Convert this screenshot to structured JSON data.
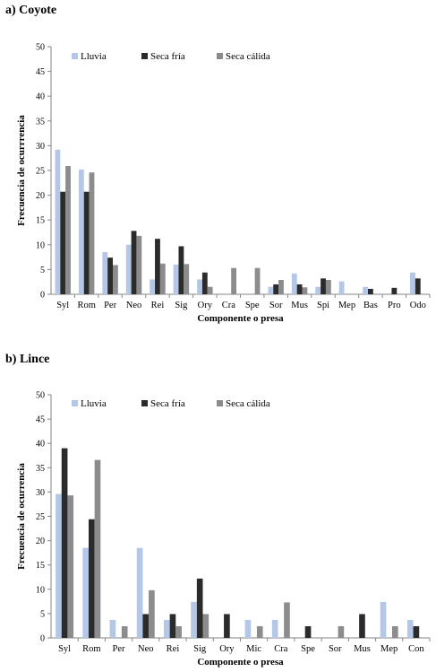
{
  "panels": [
    {
      "title": "a) Coyote"
    },
    {
      "title": "b) Lince"
    }
  ],
  "colors": {
    "lluvia": "#b4c7e7",
    "seca_fria": "#2b2b2b",
    "seca_calida": "#8c8c8c",
    "axis": "#868686"
  },
  "chart_data": [
    {
      "type": "bar",
      "xlabel": "Componente o presa",
      "ylabel": "Frecuencia de ocurrrencia",
      "ylim": [
        0,
        50
      ],
      "yticks": [
        0,
        5,
        10,
        15,
        20,
        25,
        30,
        35,
        40,
        45,
        50
      ],
      "grid": false,
      "legend_position": "top-left",
      "categories": [
        "Syl",
        "Rom",
        "Per",
        "Neo",
        "Rei",
        "Sig",
        "Ory",
        "Cra",
        "Spe",
        "Sor",
        "Mus",
        "Spi",
        "Mep",
        "Bas",
        "Pro",
        "Odo"
      ],
      "series": [
        {
          "name": "Lluvia",
          "values": [
            29.2,
            25.2,
            8.5,
            10.0,
            3.0,
            6.0,
            3.0,
            0,
            0,
            1.5,
            4.2,
            1.5,
            2.6,
            1.5,
            0,
            4.4
          ]
        },
        {
          "name": "Seca fría",
          "values": [
            20.7,
            20.7,
            7.4,
            12.8,
            11.2,
            9.7,
            4.4,
            0,
            0,
            2.0,
            2.0,
            3.2,
            0,
            1.1,
            1.3,
            3.2
          ]
        },
        {
          "name": "Seca cálida",
          "values": [
            25.9,
            24.6,
            5.9,
            11.8,
            6.2,
            6.1,
            1.5,
            5.3,
            5.3,
            2.9,
            1.4,
            2.9,
            0,
            0,
            0,
            0
          ]
        }
      ]
    },
    {
      "type": "bar",
      "xlabel": "Componente o presa",
      "ylabel": "Frecuencia de ocurrencia",
      "ylim": [
        0,
        50
      ],
      "yticks": [
        0,
        5,
        10,
        15,
        20,
        25,
        30,
        35,
        40,
        45,
        50
      ],
      "grid": false,
      "legend_position": "top-left",
      "categories": [
        "Syl",
        "Rom",
        "Per",
        "Neo",
        "Rei",
        "Sig",
        "Ory",
        "Mic",
        "Cra",
        "Spe",
        "Sor",
        "Mus",
        "Mep",
        "Con"
      ],
      "series": [
        {
          "name": "Lluvia",
          "values": [
            29.6,
            18.5,
            3.7,
            18.5,
            3.7,
            7.4,
            0,
            3.7,
            3.7,
            0,
            0,
            0,
            7.4,
            3.7
          ]
        },
        {
          "name": "Seca fría",
          "values": [
            39.0,
            24.4,
            0,
            4.9,
            4.9,
            12.2,
            4.9,
            0,
            0,
            2.4,
            0,
            4.9,
            0,
            2.4
          ]
        },
        {
          "name": "Seca cálida",
          "values": [
            29.3,
            36.6,
            2.4,
            9.8,
            2.4,
            4.9,
            0,
            2.4,
            7.3,
            0,
            2.4,
            0,
            2.4,
            0
          ]
        }
      ]
    }
  ]
}
